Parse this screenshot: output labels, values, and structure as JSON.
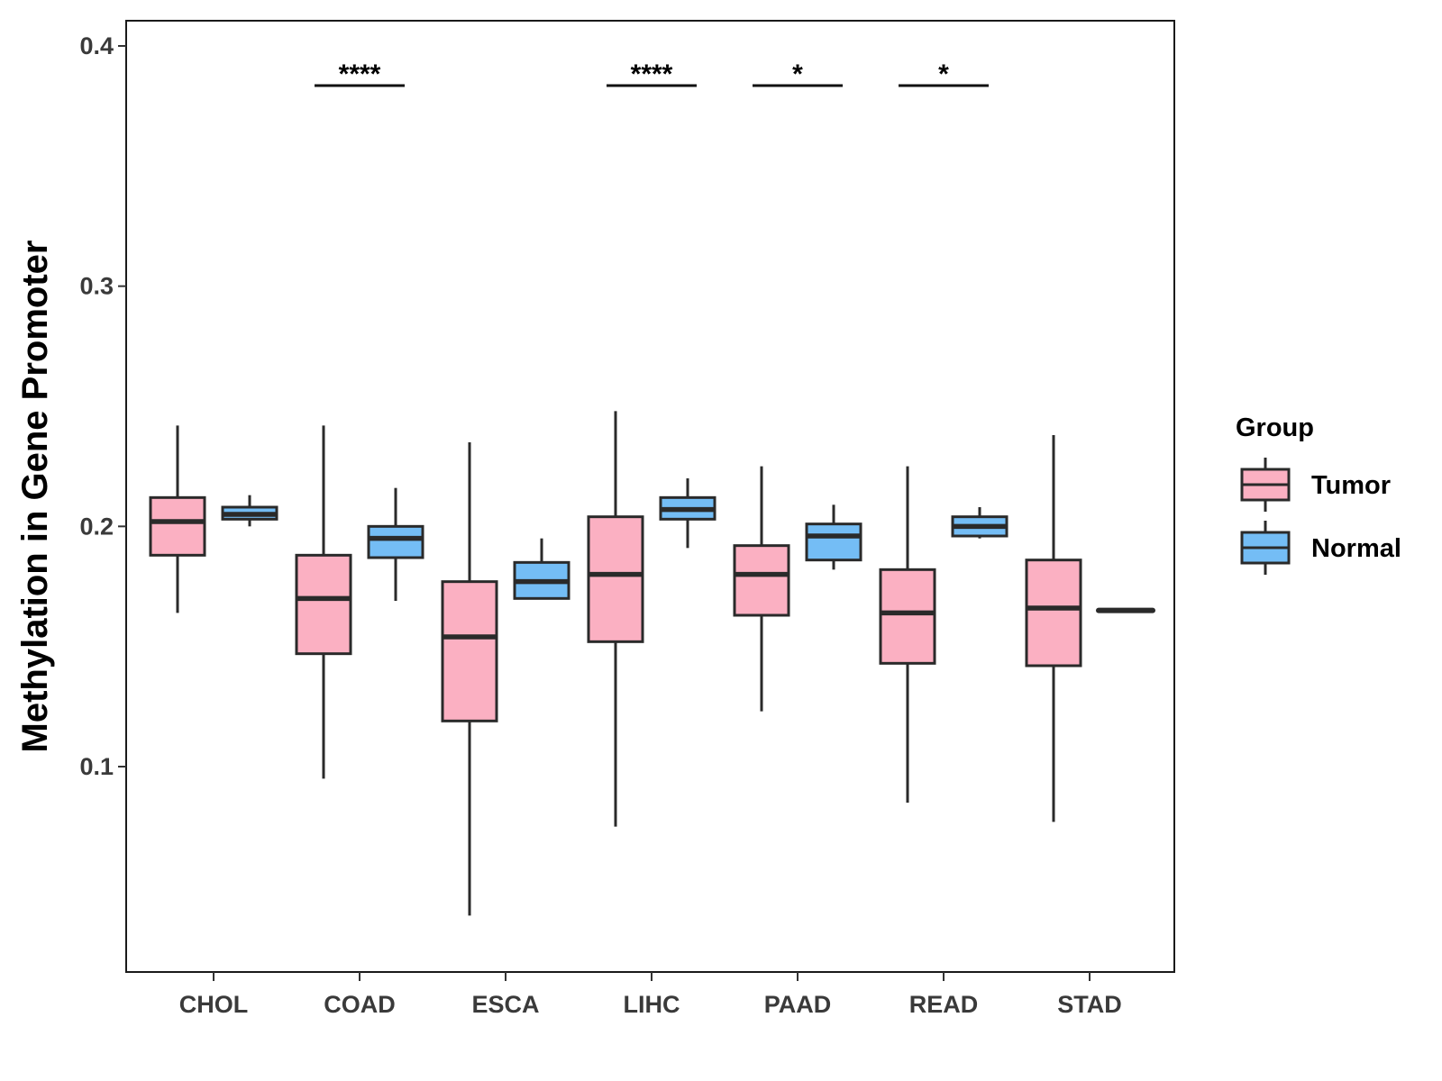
{
  "chart_data": {
    "type": "boxplot",
    "ylabel": "Methylation in Gene Promoter",
    "xlabel": "",
    "ylim": [
      0.015,
      0.41
    ],
    "yticks": [
      0.1,
      0.2,
      0.3,
      0.4
    ],
    "ytick_labels": [
      "0.1",
      "0.2",
      "0.3",
      "0.4"
    ],
    "categories": [
      "CHOL",
      "COAD",
      "ESCA",
      "LIHC",
      "PAAD",
      "READ",
      "STAD"
    ],
    "legend": {
      "title": "Group",
      "position": "right",
      "entries": [
        {
          "name": "Tumor",
          "color": "#FBB0C2"
        },
        {
          "name": "Normal",
          "color": "#74BDF5"
        }
      ]
    },
    "series": [
      {
        "name": "Tumor",
        "color": "#FBB0C2",
        "boxes": [
          {
            "category": "CHOL",
            "min": 0.164,
            "q1": 0.188,
            "median": 0.202,
            "q3": 0.212,
            "max": 0.242
          },
          {
            "category": "COAD",
            "min": 0.095,
            "q1": 0.147,
            "median": 0.17,
            "q3": 0.188,
            "max": 0.242
          },
          {
            "category": "ESCA",
            "min": 0.038,
            "q1": 0.119,
            "median": 0.154,
            "q3": 0.177,
            "max": 0.235
          },
          {
            "category": "LIHC",
            "min": 0.075,
            "q1": 0.152,
            "median": 0.18,
            "q3": 0.204,
            "max": 0.248
          },
          {
            "category": "PAAD",
            "min": 0.123,
            "q1": 0.163,
            "median": 0.18,
            "q3": 0.192,
            "max": 0.225
          },
          {
            "category": "READ",
            "min": 0.085,
            "q1": 0.143,
            "median": 0.164,
            "q3": 0.182,
            "max": 0.225
          },
          {
            "category": "STAD",
            "min": 0.077,
            "q1": 0.142,
            "median": 0.166,
            "q3": 0.186,
            "max": 0.238
          }
        ]
      },
      {
        "name": "Normal",
        "color": "#74BDF5",
        "boxes": [
          {
            "category": "CHOL",
            "min": 0.2,
            "q1": 0.203,
            "median": 0.205,
            "q3": 0.208,
            "max": 0.213
          },
          {
            "category": "COAD",
            "min": 0.169,
            "q1": 0.187,
            "median": 0.195,
            "q3": 0.2,
            "max": 0.216
          },
          {
            "category": "ESCA",
            "min": 0.17,
            "q1": 0.17,
            "median": 0.177,
            "q3": 0.185,
            "max": 0.195
          },
          {
            "category": "LIHC",
            "min": 0.191,
            "q1": 0.203,
            "median": 0.207,
            "q3": 0.212,
            "max": 0.22
          },
          {
            "category": "PAAD",
            "min": 0.182,
            "q1": 0.186,
            "median": 0.196,
            "q3": 0.201,
            "max": 0.209
          },
          {
            "category": "READ",
            "min": 0.195,
            "q1": 0.196,
            "median": 0.2,
            "q3": 0.204,
            "max": 0.208
          },
          {
            "category": "STAD",
            "min": 0.165,
            "q1": 0.165,
            "median": 0.165,
            "q3": 0.165,
            "max": 0.165
          }
        ]
      }
    ],
    "annotations": [
      {
        "category": "COAD",
        "label": "****",
        "y": 0.3835
      },
      {
        "category": "LIHC",
        "label": "****",
        "y": 0.3835
      },
      {
        "category": "PAAD",
        "label": "*",
        "y": 0.3835
      },
      {
        "category": "READ",
        "label": "*",
        "y": 0.3835
      }
    ]
  }
}
